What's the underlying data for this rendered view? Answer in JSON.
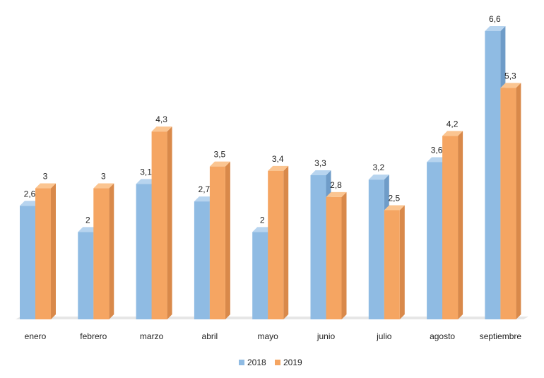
{
  "chart_data": {
    "type": "bar",
    "categories": [
      "enero",
      "febrero",
      "marzo",
      "abril",
      "mayo",
      "junio",
      "julio",
      "agosto",
      "septiembre"
    ],
    "series": [
      {
        "name": "2018",
        "color": "#8fbbe3",
        "values": [
          2.6,
          2.0,
          3.1,
          2.7,
          2.0,
          3.3,
          3.2,
          3.6,
          6.6
        ],
        "labels": [
          "2,6",
          "2",
          "3,1",
          "2,7",
          "2",
          "3,3",
          "3,2",
          "3,6",
          "6,6"
        ]
      },
      {
        "name": "2019",
        "color": "#f5a562",
        "values": [
          3.0,
          3.0,
          4.3,
          3.5,
          3.4,
          2.8,
          2.5,
          4.2,
          5.3
        ],
        "labels": [
          "3",
          "3",
          "4,3",
          "3,5",
          "3,4",
          "2,8",
          "2,5",
          "4,2",
          "5,3"
        ]
      }
    ],
    "title": "",
    "xlabel": "",
    "ylabel": "",
    "ylim": [
      0,
      6.6
    ],
    "grid": false,
    "legend_position": "bottom"
  }
}
